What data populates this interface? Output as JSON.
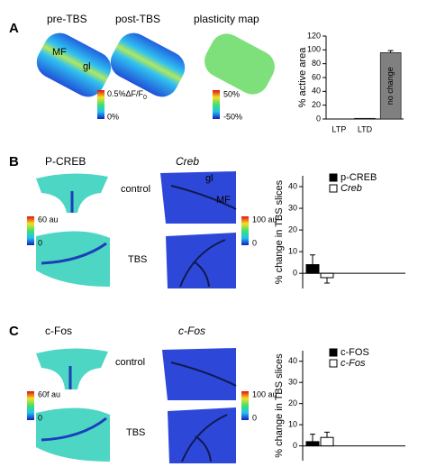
{
  "panels": {
    "A": {
      "label": "A",
      "titles": [
        "pre-TBS",
        "post-TBS",
        "plasticity map"
      ],
      "annotations": [
        "MF",
        "gl"
      ],
      "colorbars": [
        {
          "max": "0.5%ΔF/F",
          "max_sub": "0",
          "min": "0%"
        },
        {
          "max": "50%",
          "min": "-50%"
        }
      ]
    },
    "B": {
      "label": "B",
      "titles": [
        "P-CREB",
        "Creb"
      ],
      "rows": [
        "control",
        "TBS"
      ],
      "annotations": [
        "gl",
        "MF"
      ],
      "colorbars": [
        {
          "max": "60 au",
          "min": "0"
        },
        {
          "max": "100 au",
          "min": "0"
        }
      ]
    },
    "C": {
      "label": "C",
      "titles": [
        "c-Fos",
        "c-Fos"
      ],
      "rows": [
        "control",
        "TBS"
      ],
      "colorbars": [
        {
          "max": "60f au",
          "min": "0"
        },
        {
          "max": "100 au",
          "min": "0"
        }
      ]
    }
  },
  "chart_data": [
    {
      "type": "bar",
      "ylabel": "% active area",
      "categories": [
        "LTP",
        "LTD",
        "no change"
      ],
      "values": [
        0,
        1,
        96
      ],
      "errors": [
        0,
        0,
        3
      ],
      "color": "#808080",
      "ylim": [
        0,
        120
      ],
      "yticks": [
        0,
        20,
        40,
        60,
        80,
        100,
        120
      ]
    },
    {
      "type": "grouped_bar",
      "ylabel": "% change in TBS slices",
      "categories": [
        null
      ],
      "series": [
        {
          "name": "p-CREB",
          "color": "#000000",
          "values": [
            4
          ],
          "errors": [
            4.5
          ]
        },
        {
          "name": "Creb",
          "color": "#ffffff",
          "style": "italic",
          "values": [
            -2
          ],
          "errors": [
            2.5
          ]
        }
      ],
      "ylim": [
        -7,
        45
      ],
      "yticks": [
        0,
        10,
        20,
        30,
        40
      ],
      "legend": "upper right"
    },
    {
      "type": "grouped_bar",
      "ylabel": "% change in TBS slices",
      "categories": [
        null
      ],
      "series": [
        {
          "name": "c-FOS",
          "color": "#000000",
          "values": [
            2
          ],
          "errors": [
            3.5
          ]
        },
        {
          "name": "c-Fos",
          "color": "#ffffff",
          "style": "italic",
          "values": [
            4
          ],
          "errors": [
            2.5
          ]
        }
      ],
      "ylim": [
        -7,
        45
      ],
      "yticks": [
        0,
        10,
        20,
        30,
        40
      ],
      "legend": "upper right"
    }
  ]
}
